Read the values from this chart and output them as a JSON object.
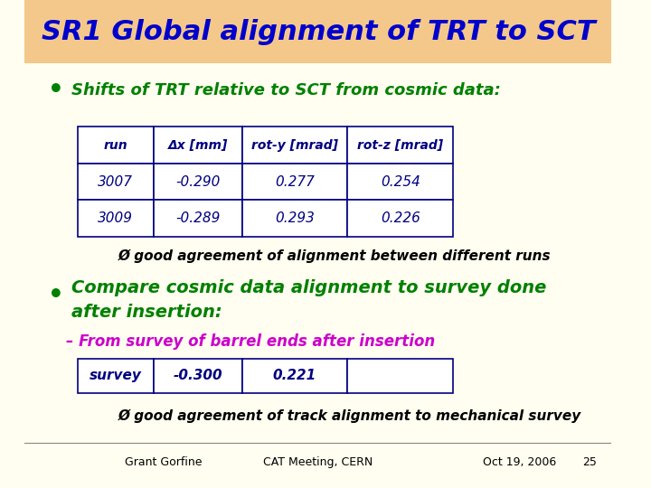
{
  "title": "SR1 Global alignment of TRT to SCT",
  "title_color": "#0000CC",
  "title_bg_color": "#F4C88A",
  "bg_color": "#FFFEF0",
  "bullet1_text": "Shifts of TRT relative to SCT from cosmic data:",
  "bullet1_color": "#008000",
  "table1_headers": [
    "run",
    "Δx [mm]",
    "rot-y [mrad]",
    "rot-z [mrad]"
  ],
  "table1_rows": [
    [
      "3007",
      "-0.290",
      "0.277",
      "0.254"
    ],
    [
      "3009",
      "-0.289",
      "0.293",
      "0.226"
    ]
  ],
  "table1_header_color": "#000080",
  "table1_data_color": "#000080",
  "table1_border_color": "#000080",
  "agreement1_text": "Ø good agreement of alignment between different runs",
  "agreement1_color": "#000000",
  "bullet2_line1": "Compare cosmic data alignment to survey done",
  "bullet2_line2": "after insertion:",
  "bullet2_color": "#008000",
  "sub_bullet_text": "– From survey of barrel ends after insertion",
  "sub_bullet_color": "#CC00CC",
  "table2_cells": [
    "survey",
    "-0.300",
    "0.221",
    ""
  ],
  "table2_data_color": "#000080",
  "table2_border_color": "#000080",
  "agreement2_text": "Ø good agreement of track alignment to mechanical survey",
  "agreement2_color": "#000000",
  "footer_left": "Grant Gorfine",
  "footer_center": "CAT Meeting, CERN",
  "footer_right": "Oct 19, 2006",
  "footer_page": "25",
  "footer_color": "#000000",
  "footer_line_color": "#888888"
}
